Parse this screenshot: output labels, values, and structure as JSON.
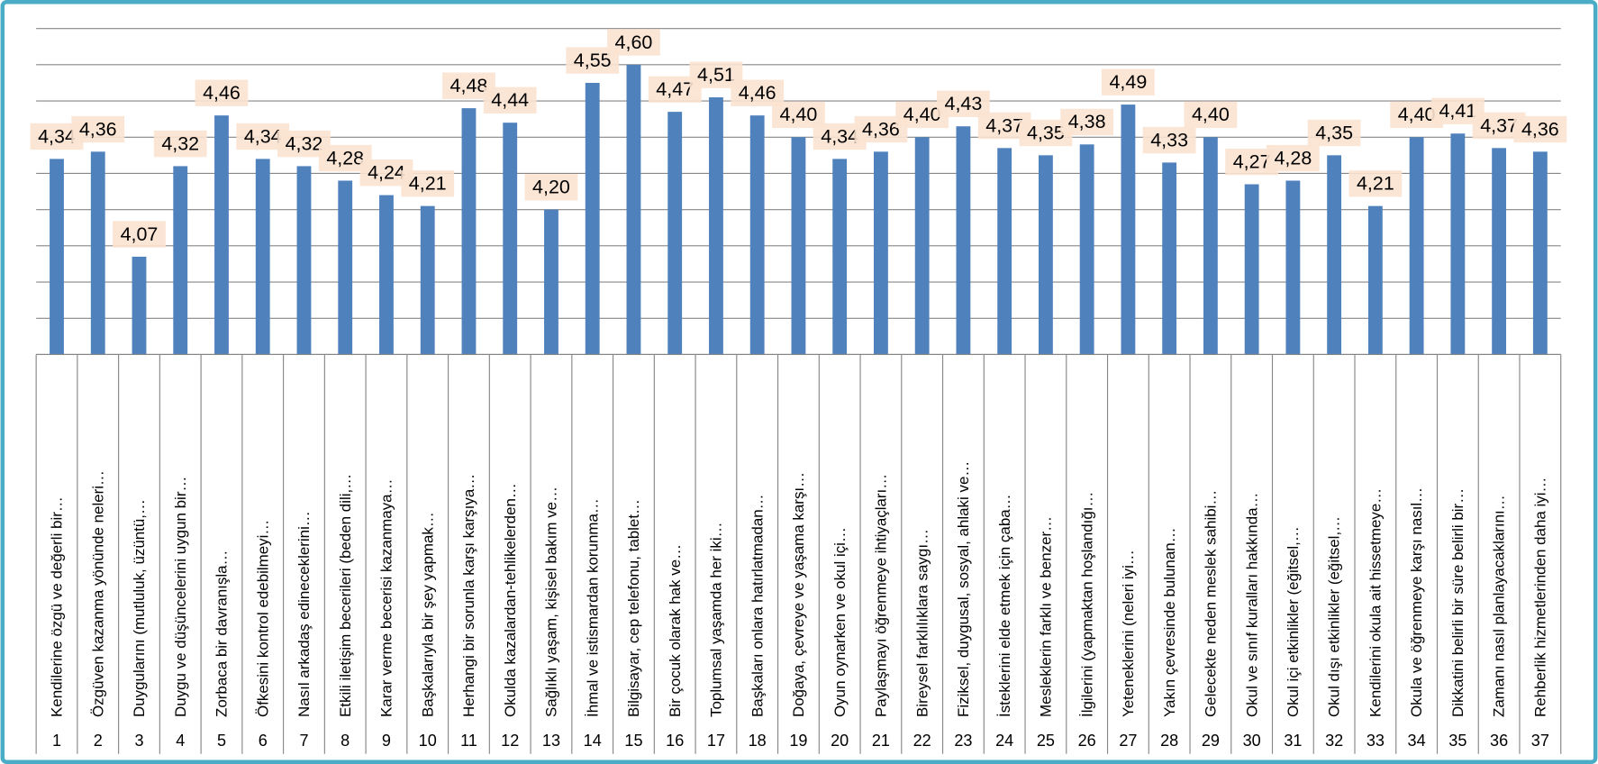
{
  "chart_data": {
    "type": "bar",
    "categories": [
      "Kendilerine özgü ve değerli bir…",
      "Özgüven kazanma yönünde neleri…",
      "Duygularını (mutluluk, üzüntü,…",
      "Duygu ve düşüncelerini uygun bir…",
      "Zorbaca bir davranışla…",
      "Öfkesini kontrol edebilmeyi…",
      "Nasıl arkadaş edineceklerini…",
      "Etkili iletişim becerileri (beden dili,…",
      "Karar verme becerisi kazanmaya…",
      "Başkalarıyla bir şey yapmak…",
      "Herhangi bir sorunla karşı karşıya…",
      "Okulda kazalardan-tehlikelerden…",
      "Sağlıklı yaşam, kişisel bakım ve…",
      "İhmal ve istismardan korunma…",
      "Bilgisayar, cep telefonu, tablet…",
      "Bir çocuk olarak hak ve…",
      "Toplumsal yaşamda her iki…",
      "Başkaları onlara hatırlatmadan…",
      "Doğaya, çevreye ve yaşama karşı…",
      "Oyun oynarken ve okul içi…",
      "Paylaşmayı öğrenmeye ihtiyaçları…",
      "Bireysel farklılıklara saygı…",
      "Fiziksel, duygusal, sosyal, ahlaki ve…",
      "İsteklerini elde etmek için çaba…",
      "Mesleklerin farklı ve benzer…",
      "İlgilerini (yapmaktan hoşlandığı…",
      "Yeteneklerini (neleri iyi…",
      "Yakın çevresinde bulunan…",
      "Gelecekte neden meslek sahibi…",
      "Okul ve sınıf kuralları hakkında…",
      "Okul içi etkinlikler (eğitsel,…",
      "Okul dışı etkinlikler (eğitsel,…",
      "Kendilerini okula ait hissetmeye…",
      "Okula ve öğrenmeye karşı nasıl…",
      "Dikkatini belirli bir süre belirli bir…",
      "Zamanı nasıl planlayacaklarını…",
      "Rehberlik hizmetlerinden daha iyi…"
    ],
    "category_numbers": [
      "1",
      "2",
      "3",
      "4",
      "5",
      "6",
      "7",
      "8",
      "9",
      "10",
      "11",
      "12",
      "13",
      "14",
      "15",
      "16",
      "17",
      "18",
      "19",
      "20",
      "21",
      "22",
      "23",
      "24",
      "25",
      "26",
      "27",
      "28",
      "29",
      "30",
      "31",
      "32",
      "33",
      "34",
      "35",
      "36",
      "37"
    ],
    "values": [
      4.34,
      4.36,
      4.07,
      4.32,
      4.46,
      4.34,
      4.32,
      4.28,
      4.24,
      4.21,
      4.48,
      4.44,
      4.2,
      4.55,
      4.6,
      4.47,
      4.51,
      4.46,
      4.4,
      4.34,
      4.36,
      4.4,
      4.43,
      4.37,
      4.35,
      4.38,
      4.49,
      4.33,
      4.4,
      4.27,
      4.28,
      4.35,
      4.21,
      4.4,
      4.41,
      4.37,
      4.36
    ],
    "value_labels": [
      "4,34",
      "4,36",
      "4,07",
      "4,32",
      "4,46",
      "4,34",
      "4,32",
      "4,28",
      "4,24",
      "4,21",
      "4,48",
      "4,44",
      "4,20",
      "4,55",
      "4,60",
      "4,47",
      "4,51",
      "4,46",
      "4,40",
      "4,34",
      "4,36",
      "4,40",
      "4,43",
      "4,37",
      "4,35",
      "4,38",
      "4,49",
      "4,33",
      "4,40",
      "4,27",
      "4,28",
      "4,35",
      "4,21",
      "4,40",
      "4,41",
      "4,37",
      "4,36"
    ],
    "color": "#4f81bd",
    "ylim": [
      3.8,
      4.7
    ],
    "yticks": [
      3.8,
      3.9,
      4.0,
      4.1,
      4.2,
      4.3,
      4.4,
      4.5,
      4.6,
      4.7
    ],
    "grid": true
  }
}
